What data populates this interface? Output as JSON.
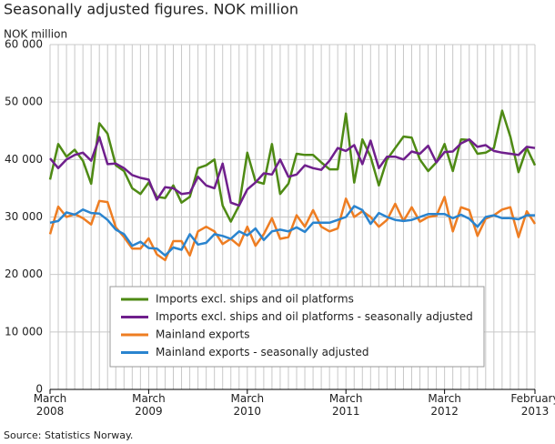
{
  "chart_data": {
    "type": "line",
    "title": "Seasonally adjusted figures. NOK million",
    "y_label": "NOK million",
    "source": "Source: Statistics Norway.",
    "categories": [
      "March\n2008",
      null,
      null,
      null,
      null,
      null,
      null,
      null,
      null,
      null,
      null,
      null,
      "March\n2009",
      null,
      null,
      null,
      null,
      null,
      null,
      null,
      null,
      null,
      null,
      null,
      "March\n2010",
      null,
      null,
      null,
      null,
      null,
      null,
      null,
      null,
      null,
      null,
      null,
      "March\n2011",
      null,
      null,
      null,
      null,
      null,
      null,
      null,
      null,
      null,
      null,
      null,
      "March\n2012",
      null,
      null,
      null,
      null,
      null,
      null,
      null,
      null,
      null,
      null,
      "February\n2013"
    ],
    "ylim": [
      0,
      60000
    ],
    "yticks": [
      0,
      {
        "value": 10000,
        "label": "10 000"
      },
      {
        "value": 20000,
        "label": "20 000"
      },
      {
        "value": 30000,
        "label": "30 000"
      },
      {
        "value": 40000,
        "label": "40 000"
      },
      {
        "value": 50000,
        "label": "50 000"
      },
      {
        "value": 60000,
        "label": "60 000"
      }
    ],
    "grid": true,
    "legend": "bottom",
    "series": [
      {
        "name": "Imports excl. ships and oil platforms",
        "color": "#4e8a14",
        "values": [
          36500,
          42700,
          40500,
          41700,
          39800,
          35800,
          46300,
          44500,
          39000,
          38000,
          35000,
          34000,
          36000,
          33500,
          33300,
          35500,
          32500,
          33500,
          38500,
          39000,
          40000,
          32000,
          29200,
          32000,
          41200,
          36200,
          35800,
          42700,
          34000,
          35800,
          41000,
          40800,
          40800,
          39500,
          38300,
          38300,
          48000,
          36000,
          43500,
          40500,
          35500,
          40000,
          42000,
          44000,
          43800,
          40000,
          38000,
          39500,
          42700,
          38000,
          43500,
          43400,
          41000,
          41200,
          42000,
          48500,
          44000,
          37800,
          42000,
          39000
        ]
      },
      {
        "name": "Imports excl. ships and oil platforms - seasonally adjusted",
        "color": "#6f1f8c",
        "values": [
          40200,
          38500,
          40000,
          40800,
          41200,
          39800,
          43900,
          39200,
          39300,
          38500,
          37300,
          36800,
          36500,
          33000,
          35200,
          35000,
          34000,
          34200,
          37000,
          35500,
          35000,
          39300,
          32500,
          32000,
          34800,
          36000,
          37600,
          37400,
          40000,
          37000,
          37400,
          39000,
          38500,
          38200,
          39800,
          42000,
          41500,
          42500,
          39200,
          43300,
          38500,
          40500,
          40500,
          40000,
          41400,
          41000,
          42400,
          39500,
          41300,
          41400,
          42800,
          43500,
          42200,
          42500,
          41500,
          41200,
          41000,
          40800,
          42200,
          42000
        ]
      },
      {
        "name": "Mainland exports",
        "color": "#ee7d22",
        "values": [
          27000,
          31800,
          30000,
          30500,
          29800,
          28700,
          32800,
          32600,
          28200,
          26500,
          24500,
          24500,
          26300,
          23500,
          22500,
          25800,
          25800,
          23300,
          27500,
          28300,
          27500,
          25300,
          26200,
          25000,
          28300,
          25000,
          27000,
          29800,
          26200,
          26500,
          30300,
          28300,
          31200,
          28300,
          27500,
          28000,
          33200,
          30000,
          31000,
          30000,
          28300,
          29500,
          32300,
          29300,
          31700,
          29200,
          30000,
          30200,
          33500,
          27500,
          31700,
          31200,
          26700,
          29700,
          30300,
          31300,
          31700,
          26500,
          31000,
          28800
        ]
      },
      {
        "name": "Mainland exports - seasonally adjusted",
        "color": "#2a84cf",
        "values": [
          29000,
          29300,
          30800,
          30400,
          31300,
          30700,
          30600,
          29500,
          27800,
          27000,
          25000,
          25700,
          24600,
          24500,
          23300,
          24700,
          24300,
          27000,
          25200,
          25500,
          27000,
          26700,
          26200,
          27500,
          26800,
          28000,
          26000,
          27500,
          27800,
          27500,
          28200,
          27400,
          29000,
          29000,
          29000,
          29500,
          30000,
          31900,
          31200,
          28800,
          30700,
          30000,
          29500,
          29300,
          29500,
          30000,
          30500,
          30500,
          30500,
          29800,
          30400,
          29700,
          28300,
          30000,
          30300,
          29800,
          29800,
          29600,
          30300,
          30300
        ]
      }
    ]
  }
}
